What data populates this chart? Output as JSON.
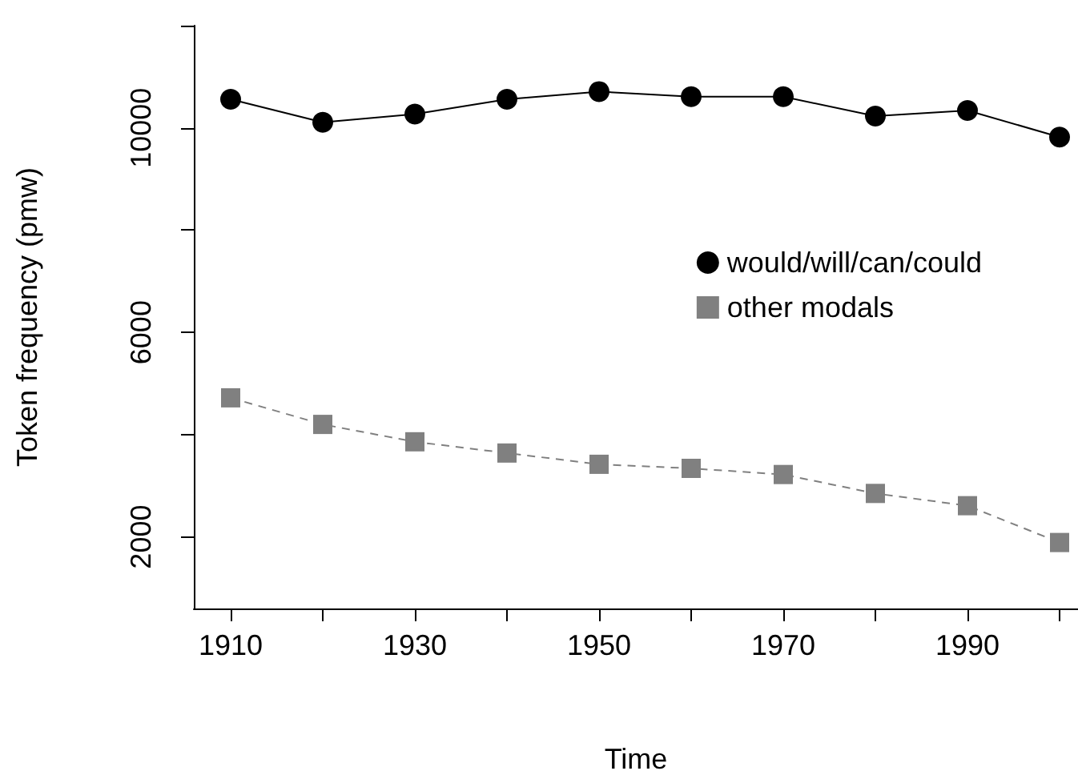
{
  "chart_data": {
    "type": "line",
    "xlabel": "Time",
    "ylabel": "Token frequency (pmw)",
    "x": [
      1910,
      1920,
      1930,
      1940,
      1950,
      1960,
      1970,
      1980,
      1990,
      2000
    ],
    "series": [
      {
        "name": "would/will/can/could",
        "color": "#000000",
        "marker": "circle",
        "line_style": "solid",
        "values": [
          10560,
          10110,
          10270,
          10560,
          10710,
          10610,
          10610,
          10230,
          10340,
          9820
        ]
      },
      {
        "name": "other modals",
        "color": "#808080",
        "marker": "square",
        "line_style": "dashed",
        "values": [
          4720,
          4200,
          3860,
          3640,
          3420,
          3340,
          3220,
          2850,
          2610,
          1890
        ]
      }
    ],
    "xlim": [
      1906,
      2002
    ],
    "xticks": [
      1910,
      {
        "value": 1920,
        "label": null
      },
      1930,
      {
        "value": 1940,
        "label": null
      },
      1950,
      {
        "value": 1960,
        "label": null
      },
      1970,
      {
        "value": 1980,
        "label": null
      },
      1990,
      {
        "value": 2000,
        "label": null
      }
    ],
    "ylim": [
      600,
      12000
    ],
    "yticks": [
      2000,
      {
        "value": 4000,
        "label": null
      },
      6000,
      {
        "value": 8000,
        "label": null
      },
      10000,
      {
        "value": 12000,
        "label": null
      }
    ],
    "grid": false,
    "legend": "right"
  }
}
